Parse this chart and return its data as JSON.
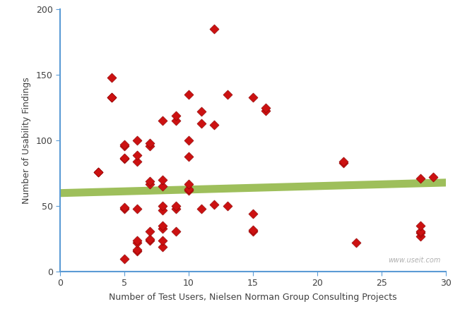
{
  "x_data": [
    3,
    3,
    4,
    4,
    4,
    5,
    5,
    5,
    5,
    5,
    5,
    5,
    6,
    6,
    6,
    6,
    6,
    6,
    6,
    6,
    7,
    7,
    7,
    7,
    7,
    7,
    7,
    8,
    8,
    8,
    8,
    8,
    8,
    8,
    8,
    8,
    9,
    9,
    9,
    9,
    9,
    10,
    10,
    10,
    10,
    10,
    10,
    11,
    11,
    11,
    12,
    12,
    12,
    13,
    13,
    15,
    15,
    15,
    15,
    16,
    16,
    22,
    22,
    23,
    28,
    28,
    28,
    28,
    28,
    29
  ],
  "y_data": [
    76,
    76,
    148,
    133,
    133,
    10,
    48,
    49,
    86,
    87,
    96,
    97,
    16,
    17,
    22,
    24,
    48,
    84,
    89,
    100,
    24,
    25,
    31,
    67,
    69,
    96,
    98,
    19,
    24,
    33,
    35,
    47,
    50,
    65,
    70,
    115,
    31,
    48,
    50,
    115,
    119,
    62,
    63,
    67,
    88,
    100,
    135,
    48,
    113,
    122,
    51,
    112,
    185,
    50,
    135,
    31,
    32,
    44,
    133,
    123,
    125,
    83,
    84,
    22,
    27,
    30,
    31,
    35,
    71,
    72
  ],
  "trend_x": [
    0,
    30
  ],
  "trend_y": [
    60,
    68
  ],
  "xlabel": "Number of Test Users, Nielsen Norman Group Consulting Projects",
  "ylabel": "Number of Usability Findings",
  "xlim": [
    0,
    30
  ],
  "ylim": [
    0,
    200
  ],
  "xticks": [
    0,
    5,
    10,
    15,
    20,
    25,
    30
  ],
  "yticks": [
    0,
    50,
    100,
    150,
    200
  ],
  "marker_color": "#cc1111",
  "marker_edge_color": "#880000",
  "trend_color": "#8db43e",
  "watermark": "www.useit.com",
  "background_color": "#ffffff",
  "spine_color": "#5b9bd5",
  "tick_label_color": "#404040",
  "label_color": "#404040"
}
